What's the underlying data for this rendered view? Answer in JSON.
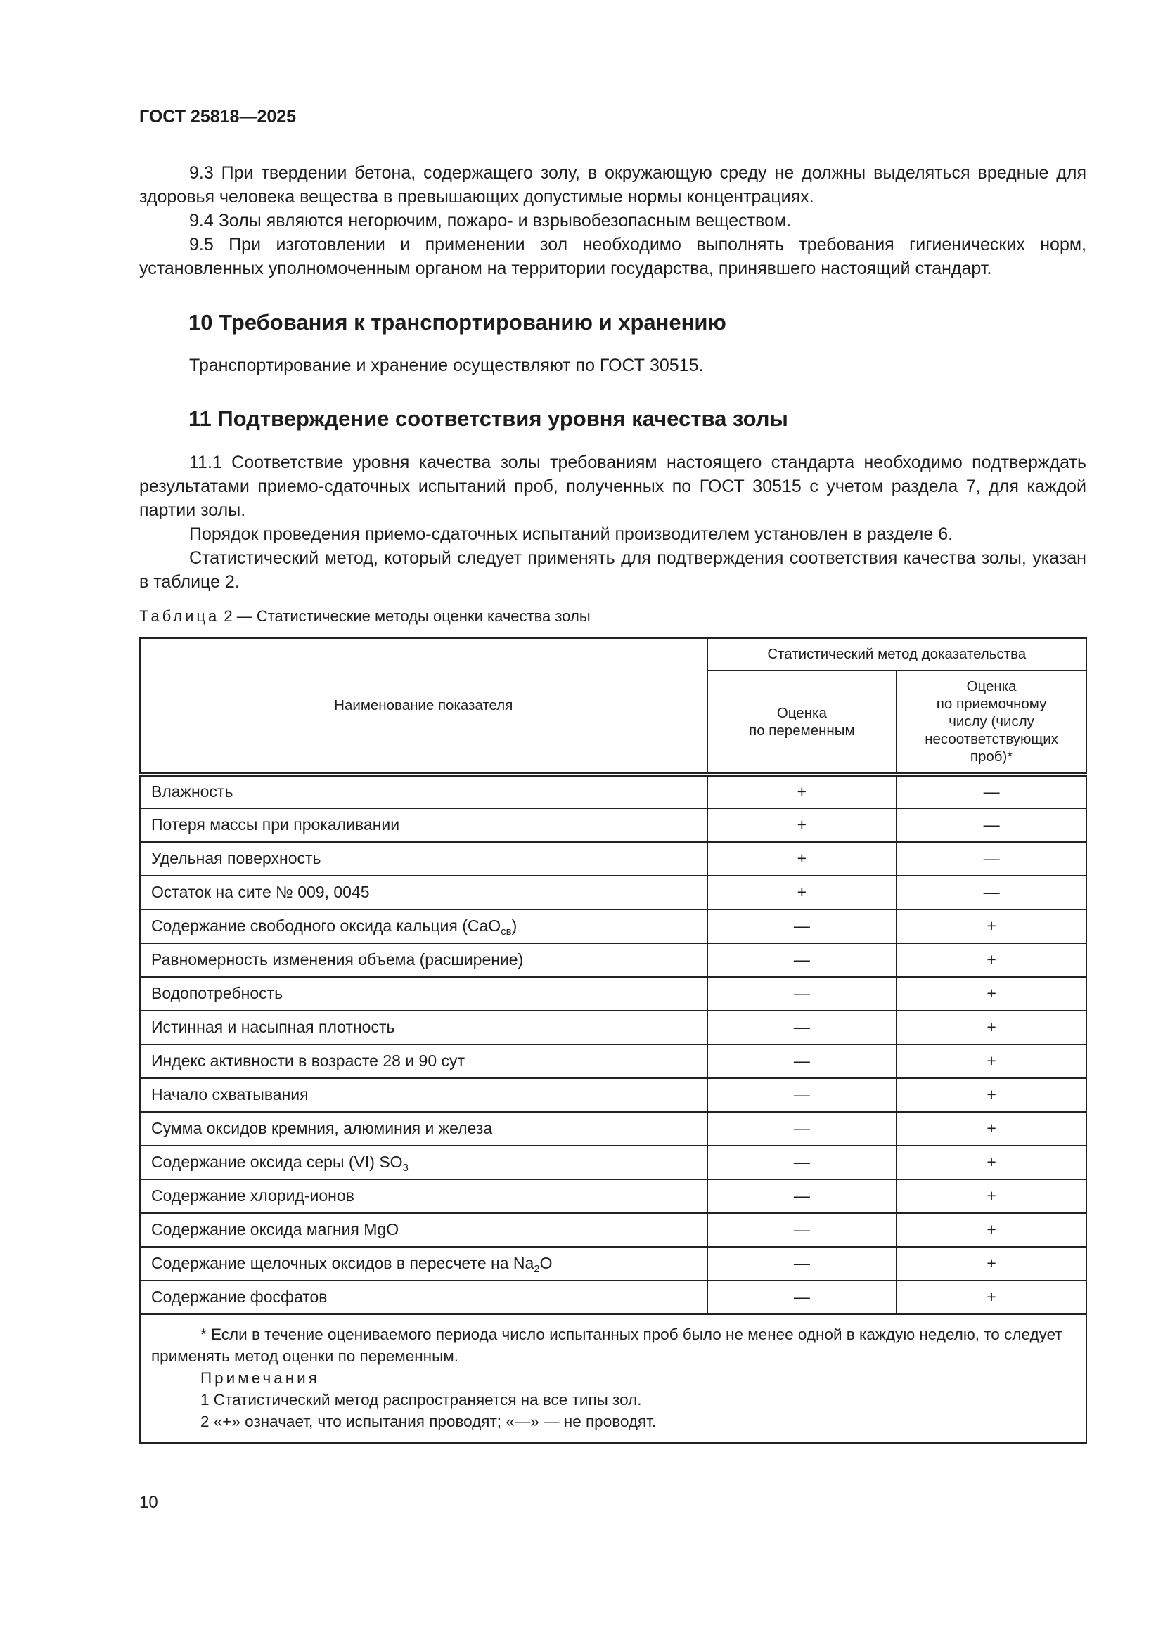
{
  "header": {
    "doc_id": "ГОСТ 25818—2025"
  },
  "section9": {
    "p93": "9.3 При твердении бетона, содержащего золу, в окружающую среду не должны выделяться вредные для здоровья человека вещества в превышающих допустимые нормы концентрациях.",
    "p94": "9.4 Золы являются негорючим, пожаро- и взрывобезопасным веществом.",
    "p95": "9.5 При изготовлении и применении зол необходимо выполнять требования гигиенических норм, установленных уполномоченным органом на территории государства, принявшего настоящий стандарт."
  },
  "section10": {
    "title": "10 Требования к транспортированию и хранению",
    "text": "Транспортирование и хранение осуществляют по ГОСТ 30515."
  },
  "section11": {
    "title": "11 Подтверждение соответствия уровня качества золы",
    "p1": "11.1 Соответствие уровня качества золы требованиям настоящего стандарта необходимо подтверждать результатами приемо-сдаточных испытаний проб, полученных по ГОСТ 30515 с учетом раздела 7, для каждой партии золы.",
    "p2": "Порядок проведения приемо-сдаточных испытаний производителем установлен в разделе 6.",
    "p3": "Статистический метод, который следует применять для подтверждения соответствия качества золы, указан в таблице 2."
  },
  "table": {
    "caption_label": "Таблица",
    "caption_text": " 2 — Статистические методы оценки качества золы",
    "col_name": "Наименование показателя",
    "col_group": "Статистический метод доказательства",
    "col_var": "Оценка\nпо переменным",
    "col_acc": "Оценка\nпо приемочному\nчислу (числу\nнесоответствующих\nпроб)*",
    "rows": [
      {
        "name": "Влажность",
        "sub": "",
        "after": "",
        "var": "+",
        "acc": "—"
      },
      {
        "name": "Потеря массы при прокаливании",
        "sub": "",
        "after": "",
        "var": "+",
        "acc": "—"
      },
      {
        "name": "Удельная поверхность",
        "sub": "",
        "after": "",
        "var": "+",
        "acc": "—"
      },
      {
        "name": "Остаток на сите № 009, 0045",
        "sub": "",
        "after": "",
        "var": "+",
        "acc": "—"
      },
      {
        "name": "Содержание свободного оксида кальция (CaO",
        "sub": "св",
        "after": ")",
        "var": "—",
        "acc": "+"
      },
      {
        "name": "Равномерность изменения объема (расширение)",
        "sub": "",
        "after": "",
        "var": "—",
        "acc": "+"
      },
      {
        "name": "Водопотребность",
        "sub": "",
        "after": "",
        "var": "—",
        "acc": "+"
      },
      {
        "name": "Истинная и насыпная плотность",
        "sub": "",
        "after": "",
        "var": "—",
        "acc": "+"
      },
      {
        "name": "Индекс активности в возрасте 28 и 90 сут",
        "sub": "",
        "after": "",
        "var": "—",
        "acc": "+"
      },
      {
        "name": "Начало схватывания",
        "sub": "",
        "after": "",
        "var": "—",
        "acc": "+"
      },
      {
        "name": "Сумма оксидов кремния, алюминия и железа",
        "sub": "",
        "after": "",
        "var": "—",
        "acc": "+"
      },
      {
        "name": "Содержание оксида серы (VI) SO",
        "sub": "3",
        "after": "",
        "var": "—",
        "acc": "+"
      },
      {
        "name": "Содержание хлорид-ионов",
        "sub": "",
        "after": "",
        "var": "—",
        "acc": "+"
      },
      {
        "name": "Содержание оксида магния MgO",
        "sub": "",
        "after": "",
        "var": "—",
        "acc": "+"
      },
      {
        "name": "Содержание щелочных оксидов в пересчете на Na",
        "sub": "2",
        "after": "O",
        "var": "—",
        "acc": "+"
      },
      {
        "name": "Содержание фосфатов",
        "sub": "",
        "after": "",
        "var": "—",
        "acc": "+"
      }
    ],
    "footnote": "* Если в течение оцениваемого периода число испытанных проб было не менее одной в каждую неделю, то следует применять метод оценки по переменным.",
    "notes_title": "Примечания",
    "note1": "1 Статистический метод распространяется на все типы зол.",
    "note2": "2 «+» означает, что испытания проводят; «—» — не проводят."
  },
  "page_number": "10"
}
